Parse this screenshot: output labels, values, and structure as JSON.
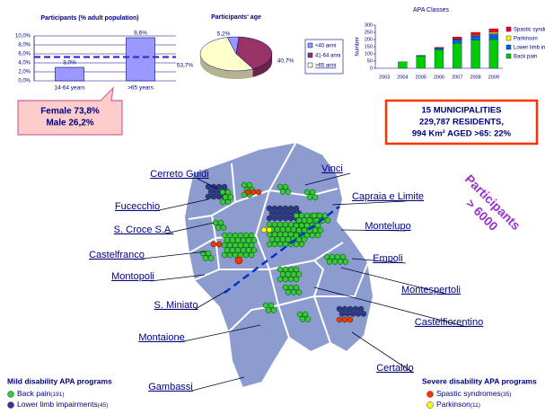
{
  "chart_data": [
    {
      "type": "bar",
      "title": "Participants (% adult population)",
      "categories": [
        "14-64 years",
        ">65  years"
      ],
      "values": [
        3.0,
        9.6
      ],
      "value_labels": [
        "3,0%",
        "9,6%"
      ],
      "color": "#9999ff",
      "reference_line": 5.3,
      "reference_color": "#3333cc",
      "ylim": [
        0,
        10
      ],
      "yticks": [
        {
          "value": 0,
          "label": "0,0%"
        },
        {
          "value": 2,
          "label": "2,0%"
        },
        {
          "value": 4,
          "label": "4,0%"
        },
        {
          "value": 6,
          "label": "6,0%"
        },
        {
          "value": 8,
          "label": "8,0%"
        },
        {
          "value": 10,
          "label": "10,0%"
        }
      ],
      "grid": true
    },
    {
      "type": "pie",
      "title": "Participants' age",
      "categories": [
        "<40 anni",
        "41-64 anni",
        ">65 anni"
      ],
      "values": [
        5.2,
        40.7,
        53.7
      ],
      "value_labels": [
        "5,2%",
        "40,7%",
        "53,7%"
      ],
      "colors": [
        "#9999ff",
        "#993366",
        "#ffffcc"
      ]
    },
    {
      "type": "stacked_bar",
      "title": "APA Classes",
      "y_label": "Number",
      "categories": [
        "2003",
        "2004",
        "2005",
        "2006",
        "2007",
        "2008",
        "2009"
      ],
      "series": [
        {
          "name": "Spastic syndromes",
          "color": "#ff0000",
          "values": [
            0,
            0,
            0,
            5,
            15,
            20,
            25
          ]
        },
        {
          "name": "Parkinson",
          "color": "#ffff00",
          "values": [
            0,
            0,
            0,
            0,
            3,
            5,
            10
          ]
        },
        {
          "name": "Lower limb impairments",
          "color": "#0066cc",
          "values": [
            0,
            0,
            5,
            10,
            25,
            30,
            40
          ]
        },
        {
          "name": "Back pain",
          "color": "#00cc00",
          "values": [
            0,
            45,
            85,
            130,
            175,
            195,
            200
          ]
        }
      ],
      "ylim": [
        0,
        300
      ],
      "yticks": [
        0,
        50,
        100,
        150,
        200,
        250,
        300
      ]
    }
  ],
  "callout": {
    "lines": [
      "Female 73,8%",
      "Male 26,2%"
    ]
  },
  "info_box": {
    "lines": [
      "15 MUNICIPALITIES",
      "229,787 RESIDENTS,",
      "994 Km² AGED >65: 22%"
    ]
  },
  "participants_note": {
    "lines": [
      "Participants",
      "> 6000"
    ]
  },
  "map": {
    "labels": [
      "Cerreto Guidi",
      "Vinci",
      "Fucecchio",
      "Capraia e Limite",
      "S. Croce S.A.",
      "Montelupo",
      "Castelfranco",
      "Empoli",
      "Montopoli",
      "Montespertoli",
      "S. Miniato",
      "Castelfiorentino",
      "Montaione",
      "Certaldo",
      "Gambassi"
    ]
  },
  "legend_mild": {
    "title": "Mild disability APA programs",
    "items": [
      {
        "name": "Back pain",
        "count": "(191)",
        "color": "#33cc33"
      },
      {
        "name": "Lower limb impairments",
        "count": "(45)",
        "color": "#333399"
      }
    ]
  },
  "legend_severe": {
    "title": "Severe disability APA programs",
    "items": [
      {
        "name": "Spastic syndromes",
        "count": "(35)",
        "color": "#ff3300"
      },
      {
        "name": "Parkinson",
        "count": "(11)",
        "color": "#ffff00"
      }
    ]
  }
}
